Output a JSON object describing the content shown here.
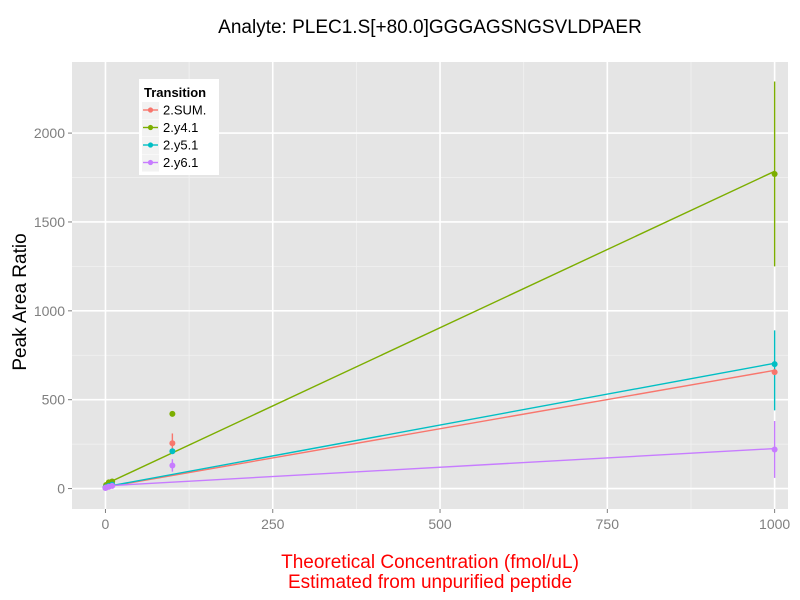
{
  "chart_data": {
    "type": "line",
    "title": "Analyte: PLEC1.S[+80.0]GGGAGSNGSVLDPAER",
    "xlabel_lines": [
      "Theoretical Concentration (fmol/uL)",
      "Estimated from unpurified peptide"
    ],
    "xlabel_color": "#ff0000",
    "ylabel": "Peak Area Ratio",
    "xlim": [
      -50,
      1020
    ],
    "ylim": [
      -115,
      2400
    ],
    "x_ticks": [
      0,
      250,
      500,
      750,
      1000
    ],
    "y_ticks": [
      0,
      500,
      1000,
      1500,
      2000
    ],
    "grid": true,
    "panel_background": "#e5e5e5",
    "legend": {
      "title": "Transition",
      "placement": "top-left"
    },
    "series": [
      {
        "name": "2.SUM.",
        "color": "#f8766d",
        "fit": {
          "x": [
            0,
            1000
          ],
          "y": [
            8,
            665
          ]
        },
        "points": [
          {
            "x": 0,
            "y": 5
          },
          {
            "x": 1,
            "y": 8
          },
          {
            "x": 5,
            "y": 15
          },
          {
            "x": 10,
            "y": 20
          },
          {
            "x": 100,
            "y": 255
          },
          {
            "x": 1000,
            "y": 655
          }
        ],
        "error_bars": [
          {
            "x": 100,
            "low": 205,
            "high": 310
          }
        ]
      },
      {
        "name": "2.y4.1",
        "color": "#7cae00",
        "fit": {
          "x": [
            0,
            1000
          ],
          "y": [
            25,
            1785
          ]
        },
        "points": [
          {
            "x": 1,
            "y": 20
          },
          {
            "x": 5,
            "y": 35
          },
          {
            "x": 10,
            "y": 40
          },
          {
            "x": 100,
            "y": 420
          },
          {
            "x": 1000,
            "y": 1770
          }
        ],
        "error_bars": [
          {
            "x": 1000,
            "low": 1250,
            "high": 2290
          }
        ]
      },
      {
        "name": "2.y5.1",
        "color": "#00bfc4",
        "fit": {
          "x": [
            0,
            1000
          ],
          "y": [
            10,
            705
          ]
        },
        "points": [
          {
            "x": 0,
            "y": 5
          },
          {
            "x": 1,
            "y": 8
          },
          {
            "x": 5,
            "y": 15
          },
          {
            "x": 10,
            "y": 22
          },
          {
            "x": 100,
            "y": 210
          },
          {
            "x": 1000,
            "y": 700
          }
        ],
        "error_bars": [
          {
            "x": 1000,
            "low": 440,
            "high": 890
          }
        ]
      },
      {
        "name": "2.y6.1",
        "color": "#c77cff",
        "fit": {
          "x": [
            0,
            1000
          ],
          "y": [
            15,
            225
          ]
        },
        "points": [
          {
            "x": 0,
            "y": 3
          },
          {
            "x": 1,
            "y": 6
          },
          {
            "x": 5,
            "y": 10
          },
          {
            "x": 10,
            "y": 15
          },
          {
            "x": 100,
            "y": 130
          },
          {
            "x": 1000,
            "y": 220
          }
        ],
        "error_bars": [
          {
            "x": 100,
            "low": 95,
            "high": 165
          },
          {
            "x": 1000,
            "low": 60,
            "high": 380
          }
        ]
      }
    ]
  }
}
